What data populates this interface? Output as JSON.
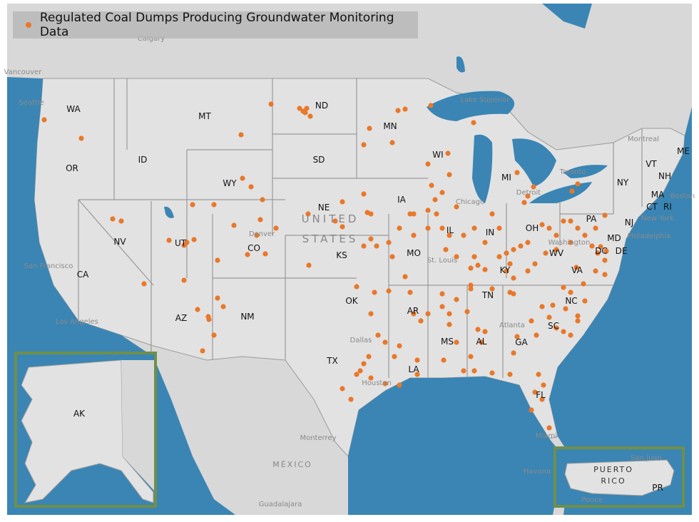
{
  "legend": {
    "label": "Regulated Coal Dumps Producing Groundwater Monitoring Data"
  },
  "colors": {
    "ocean": "#3a85b4",
    "land": "#d8d8d8",
    "us_land": "#e2e2e2",
    "border": "#9a9a9a",
    "dot": "#e8782a",
    "inset_frame": "#6f8f4a"
  },
  "country_labels": [
    "UNITED",
    "STATES",
    "MÉXICO"
  ],
  "state_labels": [
    "WA",
    "OR",
    "ID",
    "MT",
    "ND",
    "SD",
    "MN",
    "WI",
    "MI",
    "NY",
    "VT",
    "NH",
    "ME",
    "MA",
    "CT",
    "RI",
    "PA",
    "NJ",
    "MD",
    "DE",
    "DC",
    "WY",
    "NE",
    "IA",
    "IL",
    "IN",
    "OH",
    "WV",
    "VA",
    "NV",
    "UT",
    "CO",
    "KS",
    "MO",
    "KY",
    "CA",
    "AZ",
    "NM",
    "OK",
    "AR",
    "TN",
    "NC",
    "SC",
    "MS",
    "AL",
    "GA",
    "TX",
    "LA",
    "FL",
    "AK",
    "PR"
  ],
  "city_labels": [
    "Calgary",
    "Vancouver",
    "Seattle",
    "Montreal",
    "Toronto",
    "Detroit",
    "Chicago",
    "St. Louis",
    "Washington",
    "Philadelphia",
    "New York",
    "Boston",
    "San Francisco",
    "Los Angeles",
    "Denver",
    "Dallas",
    "Houston",
    "Atlanta",
    "Miami",
    "Monterrey",
    "Guadalajara",
    "Havana",
    "San Juan",
    "Ponce",
    "Lake Superior"
  ],
  "inset_labels": [
    "PUERTO",
    "RICO"
  ]
}
